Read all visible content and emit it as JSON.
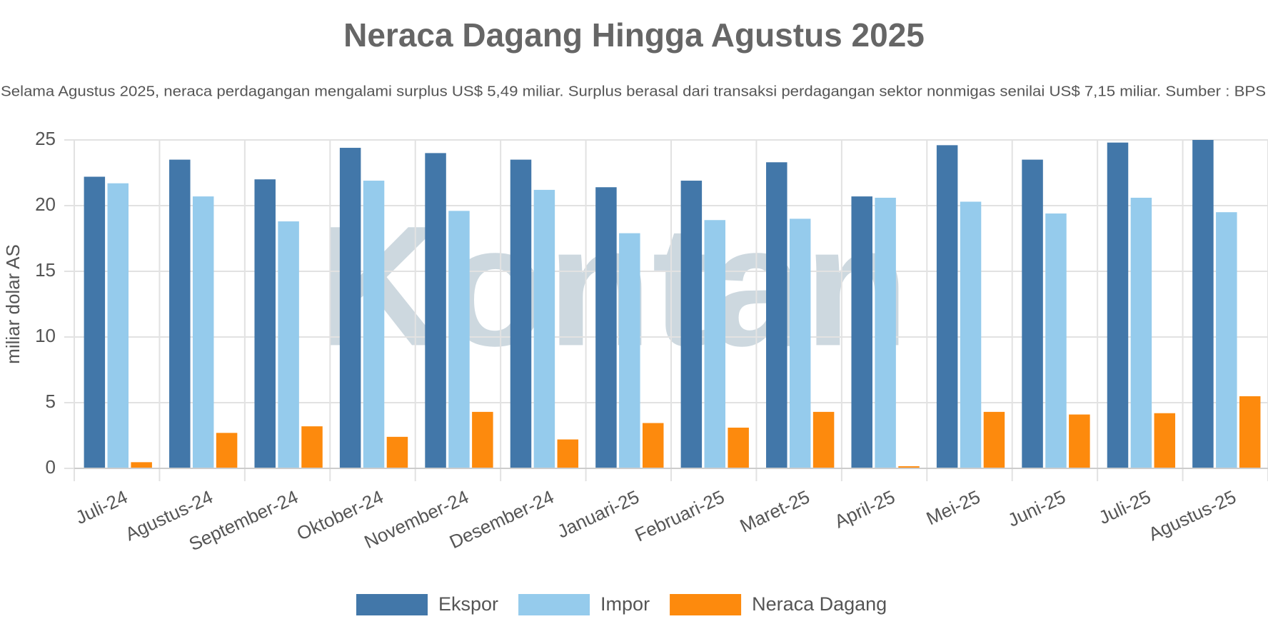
{
  "chart_data": {
    "type": "bar",
    "title": "Neraca Dagang Hingga Agustus 2025",
    "subtitle": "Selama Agustus 2025, neraca perdagangan mengalami surplus US$ 5,49 miliar. Surplus berasal dari transaksi perdagangan sektor nonmigas senilai US$ 7,15 miliar. Sumber : BPS",
    "watermark": "Kontan",
    "y_label": "miliar dolar AS",
    "categories": [
      "Juli-24",
      "Agustus-24",
      "September-24",
      "Oktober-24",
      "November-24",
      "Desember-24",
      "Januari-25",
      "Februari-25",
      "Maret-25",
      "April-25",
      "Mei-25",
      "Juni-25",
      "Juli-25",
      "Agustus-25"
    ],
    "series": [
      {
        "name": "Ekspor",
        "color": "#4277a9",
        "values": [
          22.2,
          23.5,
          22.0,
          24.4,
          24.0,
          23.5,
          21.4,
          21.9,
          23.3,
          20.7,
          24.6,
          23.5,
          24.8,
          25.0
        ]
      },
      {
        "name": "Impor",
        "color": "#95cbec",
        "values": [
          21.7,
          20.7,
          18.8,
          21.9,
          19.6,
          21.2,
          17.9,
          18.9,
          19.0,
          20.6,
          20.3,
          19.4,
          20.6,
          19.5
        ]
      },
      {
        "name": "Neraca Dagang",
        "color": "#fd8a0d",
        "values": [
          0.47,
          2.7,
          3.2,
          2.4,
          4.3,
          2.2,
          3.45,
          3.1,
          4.3,
          0.16,
          4.3,
          4.1,
          4.2,
          5.49
        ]
      }
    ],
    "ylim": [
      0,
      25
    ],
    "yticks": [
      0,
      5,
      10,
      15,
      20,
      25
    ],
    "grid": true,
    "legend": "bottom"
  }
}
